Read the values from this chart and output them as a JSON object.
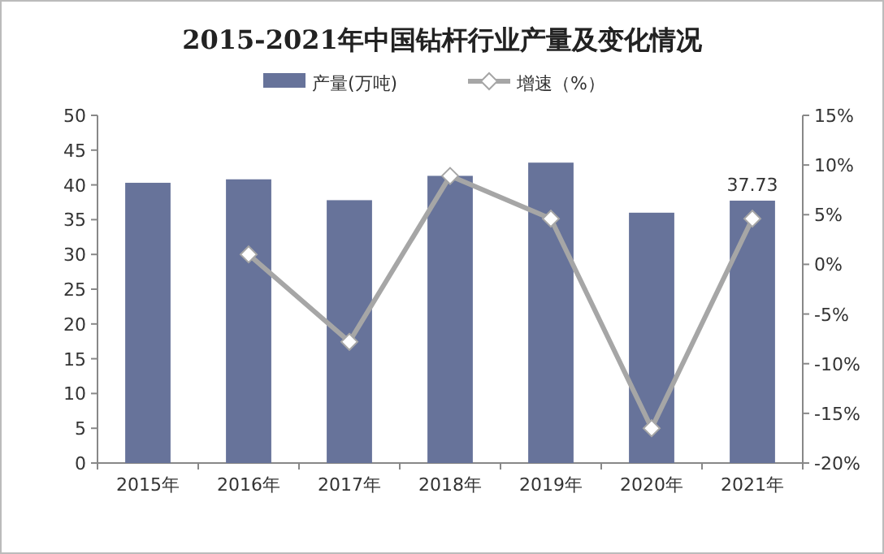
{
  "chart_data": {
    "type": "bar",
    "title": "2015-2021年中国钻杆行业产量及变化情况",
    "categories": [
      "2015年",
      "2016年",
      "2017年",
      "2018年",
      "2019年",
      "2020年",
      "2021年"
    ],
    "series": [
      {
        "name": "产量(万吨)",
        "color": "#67739a",
        "values": [
          40.3,
          40.8,
          37.8,
          41.3,
          43.2,
          36.0,
          37.73
        ],
        "value_labels": [
          null,
          null,
          null,
          null,
          null,
          null,
          "37.73"
        ]
      },
      {
        "name": "增速（%）",
        "type": "line",
        "axis": "y2",
        "color": "#a6a6a6",
        "marker": "diamond",
        "values": [
          null,
          1.0,
          -7.8,
          8.9,
          4.6,
          -16.5,
          4.6
        ]
      }
    ],
    "ylim": [
      0,
      50
    ],
    "yticks": [
      0,
      5,
      10,
      15,
      20,
      25,
      30,
      35,
      40,
      45,
      50
    ],
    "y2lim": [
      -20,
      15
    ],
    "y2ticks": [
      {
        "value": -20,
        "label": "-20%"
      },
      {
        "value": -15,
        "label": "-15%"
      },
      {
        "value": -10,
        "label": "-10%"
      },
      {
        "value": -5,
        "label": "-5%"
      },
      {
        "value": 0,
        "label": "0%"
      },
      {
        "value": 5,
        "label": "5%"
      },
      {
        "value": 10,
        "label": "10%"
      },
      {
        "value": 15,
        "label": "15%"
      }
    ],
    "legend": "top"
  }
}
